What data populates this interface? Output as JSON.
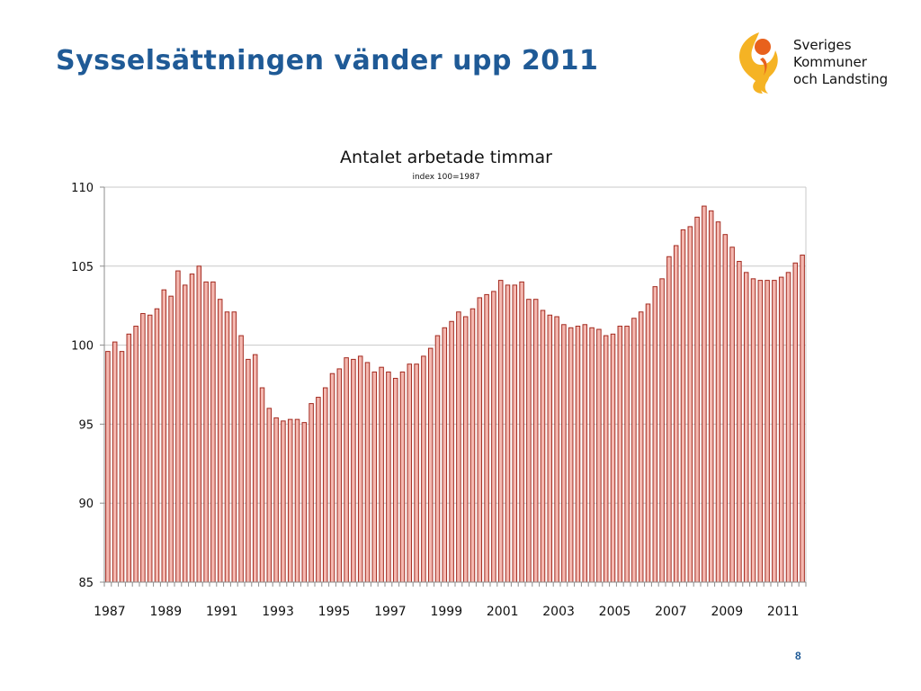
{
  "slide": {
    "title": "Sysselsättningen vänder upp 2011",
    "page_number": "8"
  },
  "logo": {
    "icon": "skl-flame-figure-icon",
    "lines": [
      "Sveriges",
      "Kommuner",
      "och Landsting"
    ],
    "colors": {
      "orange": "#e8611c",
      "yellow": "#f5b324"
    }
  },
  "chart_data": {
    "type": "bar",
    "title": "Antalet arbetade timmar",
    "subtitle": "index 100=1987",
    "ylim": [
      85,
      110
    ],
    "yticks": [
      85,
      90,
      95,
      100,
      105,
      110
    ],
    "grid": true,
    "bar_fill": "#f4b8b0",
    "bar_stroke": "#a32a1f",
    "xtick_labels": [
      "1987",
      "1989",
      "1991",
      "1993",
      "1995",
      "1997",
      "1999",
      "2001",
      "2003",
      "2005",
      "2007",
      "2009",
      "2011"
    ],
    "series": [
      {
        "values": [
          99.6,
          100.2,
          99.6,
          100.7,
          101.2,
          102.0,
          101.9,
          102.3,
          103.5,
          103.1,
          104.7,
          103.8,
          104.5,
          105.0,
          104.0,
          104.0,
          102.9,
          102.1,
          102.1,
          100.6,
          99.1,
          99.4,
          97.3,
          96.0,
          95.4,
          95.2,
          95.3,
          95.3,
          95.1,
          96.3,
          96.7,
          97.3,
          98.2,
          98.5,
          99.2,
          99.1,
          99.3,
          98.9,
          98.3,
          98.6,
          98.3,
          97.9,
          98.3,
          98.8,
          98.8,
          99.3,
          99.8,
          100.6,
          101.1,
          101.5,
          102.1,
          101.8,
          102.3,
          103.0,
          103.2,
          103.4,
          104.1,
          103.8,
          103.8,
          104.0,
          102.9,
          102.9,
          102.2,
          101.9,
          101.8,
          101.3,
          101.1,
          101.2,
          101.3,
          101.1,
          101.0,
          100.6,
          100.7,
          101.2,
          101.2,
          101.7,
          102.1,
          102.6,
          103.7,
          104.2,
          105.6,
          106.3,
          107.3,
          107.5,
          108.1,
          108.8,
          108.5,
          107.8,
          107.0,
          106.2,
          105.3,
          104.6,
          104.2,
          104.1,
          104.1,
          104.1,
          104.3,
          104.6,
          105.2,
          105.7
        ]
      }
    ]
  }
}
